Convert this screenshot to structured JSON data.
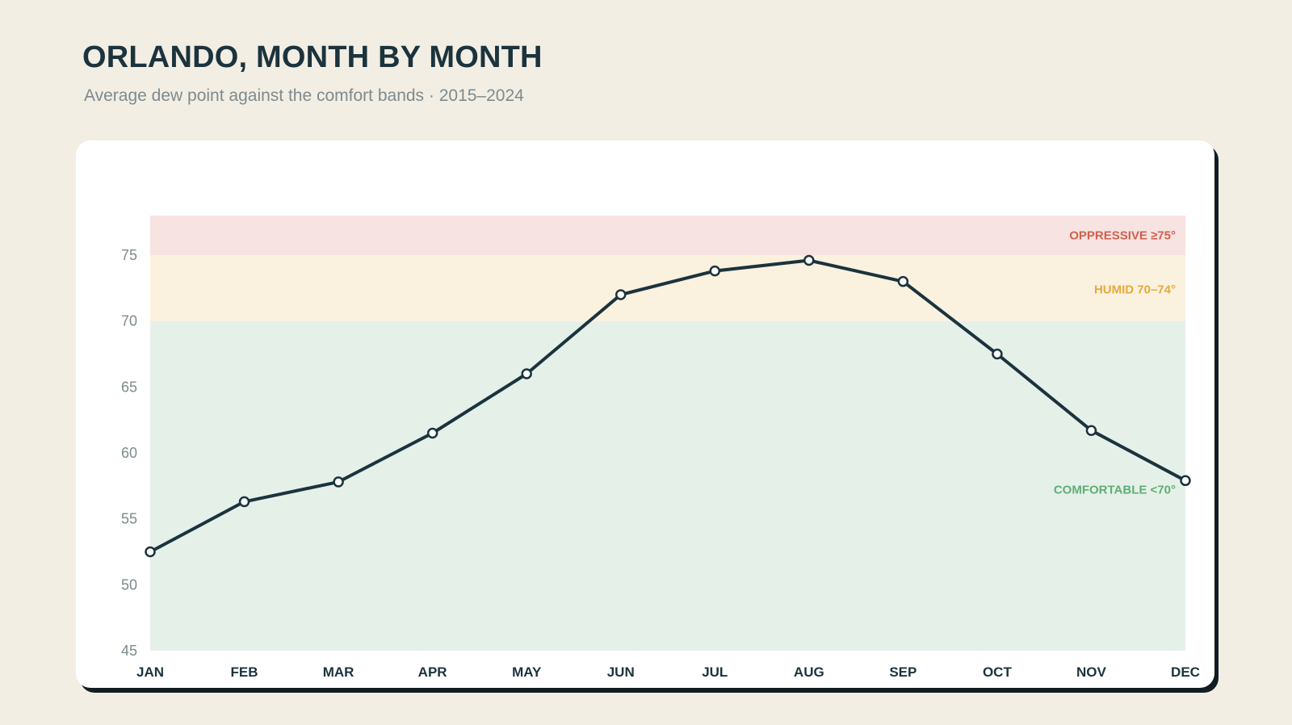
{
  "title": "ORLANDO, MONTH BY MONTH",
  "subtitle": "Average dew point against the comfort bands · 2015–2024",
  "chart_data": {
    "type": "line",
    "title": "ORLANDO, MONTH BY MONTH",
    "subtitle": "Average dew point against the comfort bands · 2015–2024",
    "xlabel": "",
    "ylabel": "",
    "categories": [
      "JAN",
      "FEB",
      "MAR",
      "APR",
      "MAY",
      "JUN",
      "JUL",
      "AUG",
      "SEP",
      "OCT",
      "NOV",
      "DEC"
    ],
    "series": [
      {
        "values": [
          52.5,
          56.3,
          57.8,
          61.5,
          66.0,
          72.0,
          73.8,
          74.6,
          73.0,
          67.5,
          61.7,
          57.9
        ],
        "color": "#1b333d"
      }
    ],
    "ylim": [
      45,
      78
    ],
    "yticks": [
      45,
      50,
      55,
      60,
      65,
      70,
      75
    ],
    "grid": false,
    "legend": "none",
    "bands": [
      {
        "label": "COMFORTABLE <70°",
        "from": 45,
        "to": 70,
        "fill": "#e5f0e9",
        "label_color": "#5fae73"
      },
      {
        "label": "HUMID 70–74°",
        "from": 70,
        "to": 75,
        "fill": "#faf1df",
        "label_color": "#e8a93a"
      },
      {
        "label": "OPPRESSIVE ≥75°",
        "from": 75,
        "to": 78,
        "fill": "#f7e3e1",
        "label_color": "#d0604d"
      }
    ]
  },
  "colors": {
    "background": "#f2eee3",
    "card": "#ffffff",
    "line": "#1b333d",
    "marker_fill": "#ffffff",
    "tick_text": "#7e8a8e",
    "month_text": "#1b333d"
  }
}
